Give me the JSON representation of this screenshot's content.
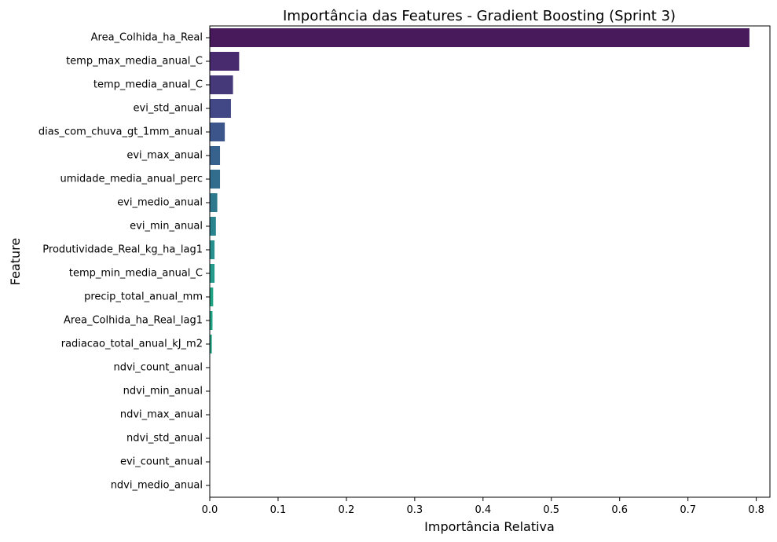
{
  "chart_data": {
    "type": "bar",
    "orientation": "horizontal",
    "title": "Importância das Features - Gradient Boosting (Sprint 3)",
    "xlabel": "Importância Relativa",
    "ylabel": "Feature",
    "xlim": [
      0.0,
      0.82
    ],
    "xticks": [
      "0.0",
      "0.1",
      "0.2",
      "0.3",
      "0.4",
      "0.5",
      "0.6",
      "0.7",
      "0.8"
    ],
    "grid": false,
    "categories": [
      "Area_Colhida_ha_Real",
      "temp_max_media_anual_C",
      "temp_media_anual_C",
      "evi_std_anual",
      "dias_com_chuva_gt_1mm_anual",
      "evi_max_anual",
      "umidade_media_anual_perc",
      "evi_medio_anual",
      "evi_min_anual",
      "Produtividade_Real_kg_ha_lag1",
      "temp_min_media_anual_C",
      "precip_total_anual_mm",
      "Area_Colhida_ha_Real_lag1",
      "radiacao_total_anual_kJ_m2",
      "ndvi_count_anual",
      "ndvi_min_anual",
      "ndvi_max_anual",
      "ndvi_std_anual",
      "evi_count_anual",
      "ndvi_medio_anual"
    ],
    "values": [
      0.79,
      0.043,
      0.034,
      0.031,
      0.022,
      0.015,
      0.015,
      0.011,
      0.009,
      0.007,
      0.007,
      0.005,
      0.004,
      0.003,
      0.0,
      0.0,
      0.0,
      0.0,
      0.0,
      0.0
    ],
    "colors": [
      "#481a5c",
      "#482b6e",
      "#45397a",
      "#414885",
      "#3c558a",
      "#37628d",
      "#336d8e",
      "#2e788e",
      "#2a848e",
      "#278f8e",
      "#239b8a",
      "#21a685",
      "#21a685",
      "#21a685",
      "#21a685",
      "#21a685",
      "#21a685",
      "#21a685",
      "#21a685",
      "#21a685"
    ]
  }
}
